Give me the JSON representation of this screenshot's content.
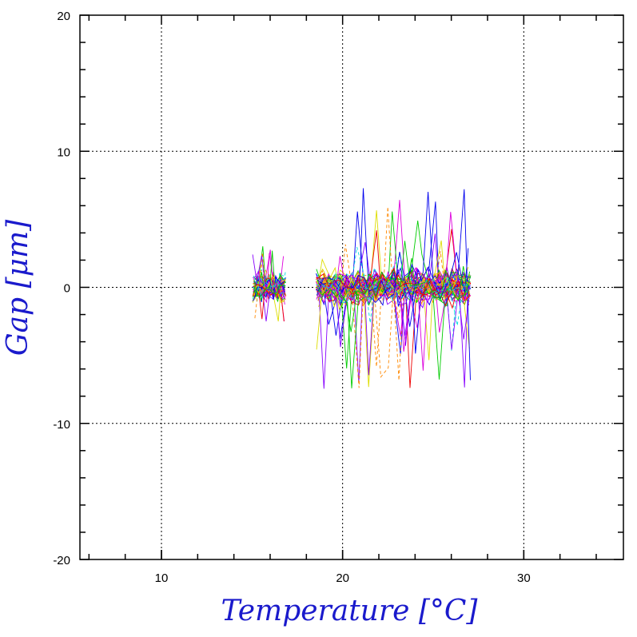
{
  "chart_data": {
    "type": "line",
    "title": "",
    "xlabel": "Temperature [°C]",
    "ylabel": "Gap [μm]",
    "xlim": [
      5.5,
      35.5
    ],
    "ylim": [
      -20,
      20
    ],
    "x_ticks": [
      10,
      20,
      30
    ],
    "y_ticks": [
      -20,
      -10,
      0,
      10,
      20
    ],
    "x_tick_labels": [
      "10",
      "20",
      "30"
    ],
    "y_tick_labels": [
      "-20",
      "-10",
      "0",
      "10",
      "20"
    ],
    "grid": true,
    "legend": "none",
    "clusters": [
      {
        "x_range": [
          15.1,
          16.8
        ],
        "y_spread": 1.2,
        "y_extreme": [
          -2.5,
          3.5
        ]
      },
      {
        "x_range": [
          18.6,
          27.0
        ],
        "y_spread": 1.4,
        "y_extreme": [
          -7.5,
          7.5
        ]
      }
    ],
    "series_colors": [
      "#0000ee",
      "#ee0000",
      "#00cc00",
      "#00dddd",
      "#dd00dd",
      "#dddd00",
      "#8800ff",
      "#ff8800"
    ],
    "line_styles": [
      "solid",
      "dashed"
    ],
    "num_series": 60
  }
}
